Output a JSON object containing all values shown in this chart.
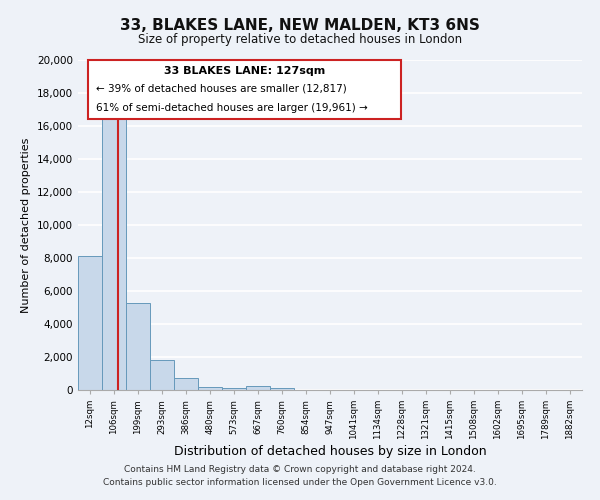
{
  "title": "33, BLAKES LANE, NEW MALDEN, KT3 6NS",
  "subtitle": "Size of property relative to detached houses in London",
  "xlabel": "Distribution of detached houses by size in London",
  "ylabel": "Number of detached properties",
  "bar_color": "#c8d8ea",
  "bar_edge_color": "#6699bb",
  "background_color": "#eef2f8",
  "grid_color": "#ffffff",
  "categories": [
    "12sqm",
    "106sqm",
    "199sqm",
    "293sqm",
    "386sqm",
    "480sqm",
    "573sqm",
    "667sqm",
    "760sqm",
    "854sqm",
    "947sqm",
    "1041sqm",
    "1134sqm",
    "1228sqm",
    "1321sqm",
    "1415sqm",
    "1508sqm",
    "1602sqm",
    "1695sqm",
    "1789sqm",
    "1882sqm"
  ],
  "values": [
    8100,
    16600,
    5300,
    1800,
    750,
    200,
    120,
    250,
    110,
    0,
    0,
    0,
    0,
    0,
    0,
    0,
    0,
    0,
    0,
    0,
    0
  ],
  "ylim": [
    0,
    20000
  ],
  "yticks": [
    0,
    2000,
    4000,
    6000,
    8000,
    10000,
    12000,
    14000,
    16000,
    18000,
    20000
  ],
  "property_label": "33 BLAKES LANE: 127sqm",
  "annotation_line1": "← 39% of detached houses are smaller (12,817)",
  "annotation_line2": "61% of semi-detached houses are larger (19,961) →",
  "footer1": "Contains HM Land Registry data © Crown copyright and database right 2024.",
  "footer2": "Contains public sector information licensed under the Open Government Licence v3.0.",
  "red_line_color": "#cc2222",
  "red_box_color": "#cc2222"
}
